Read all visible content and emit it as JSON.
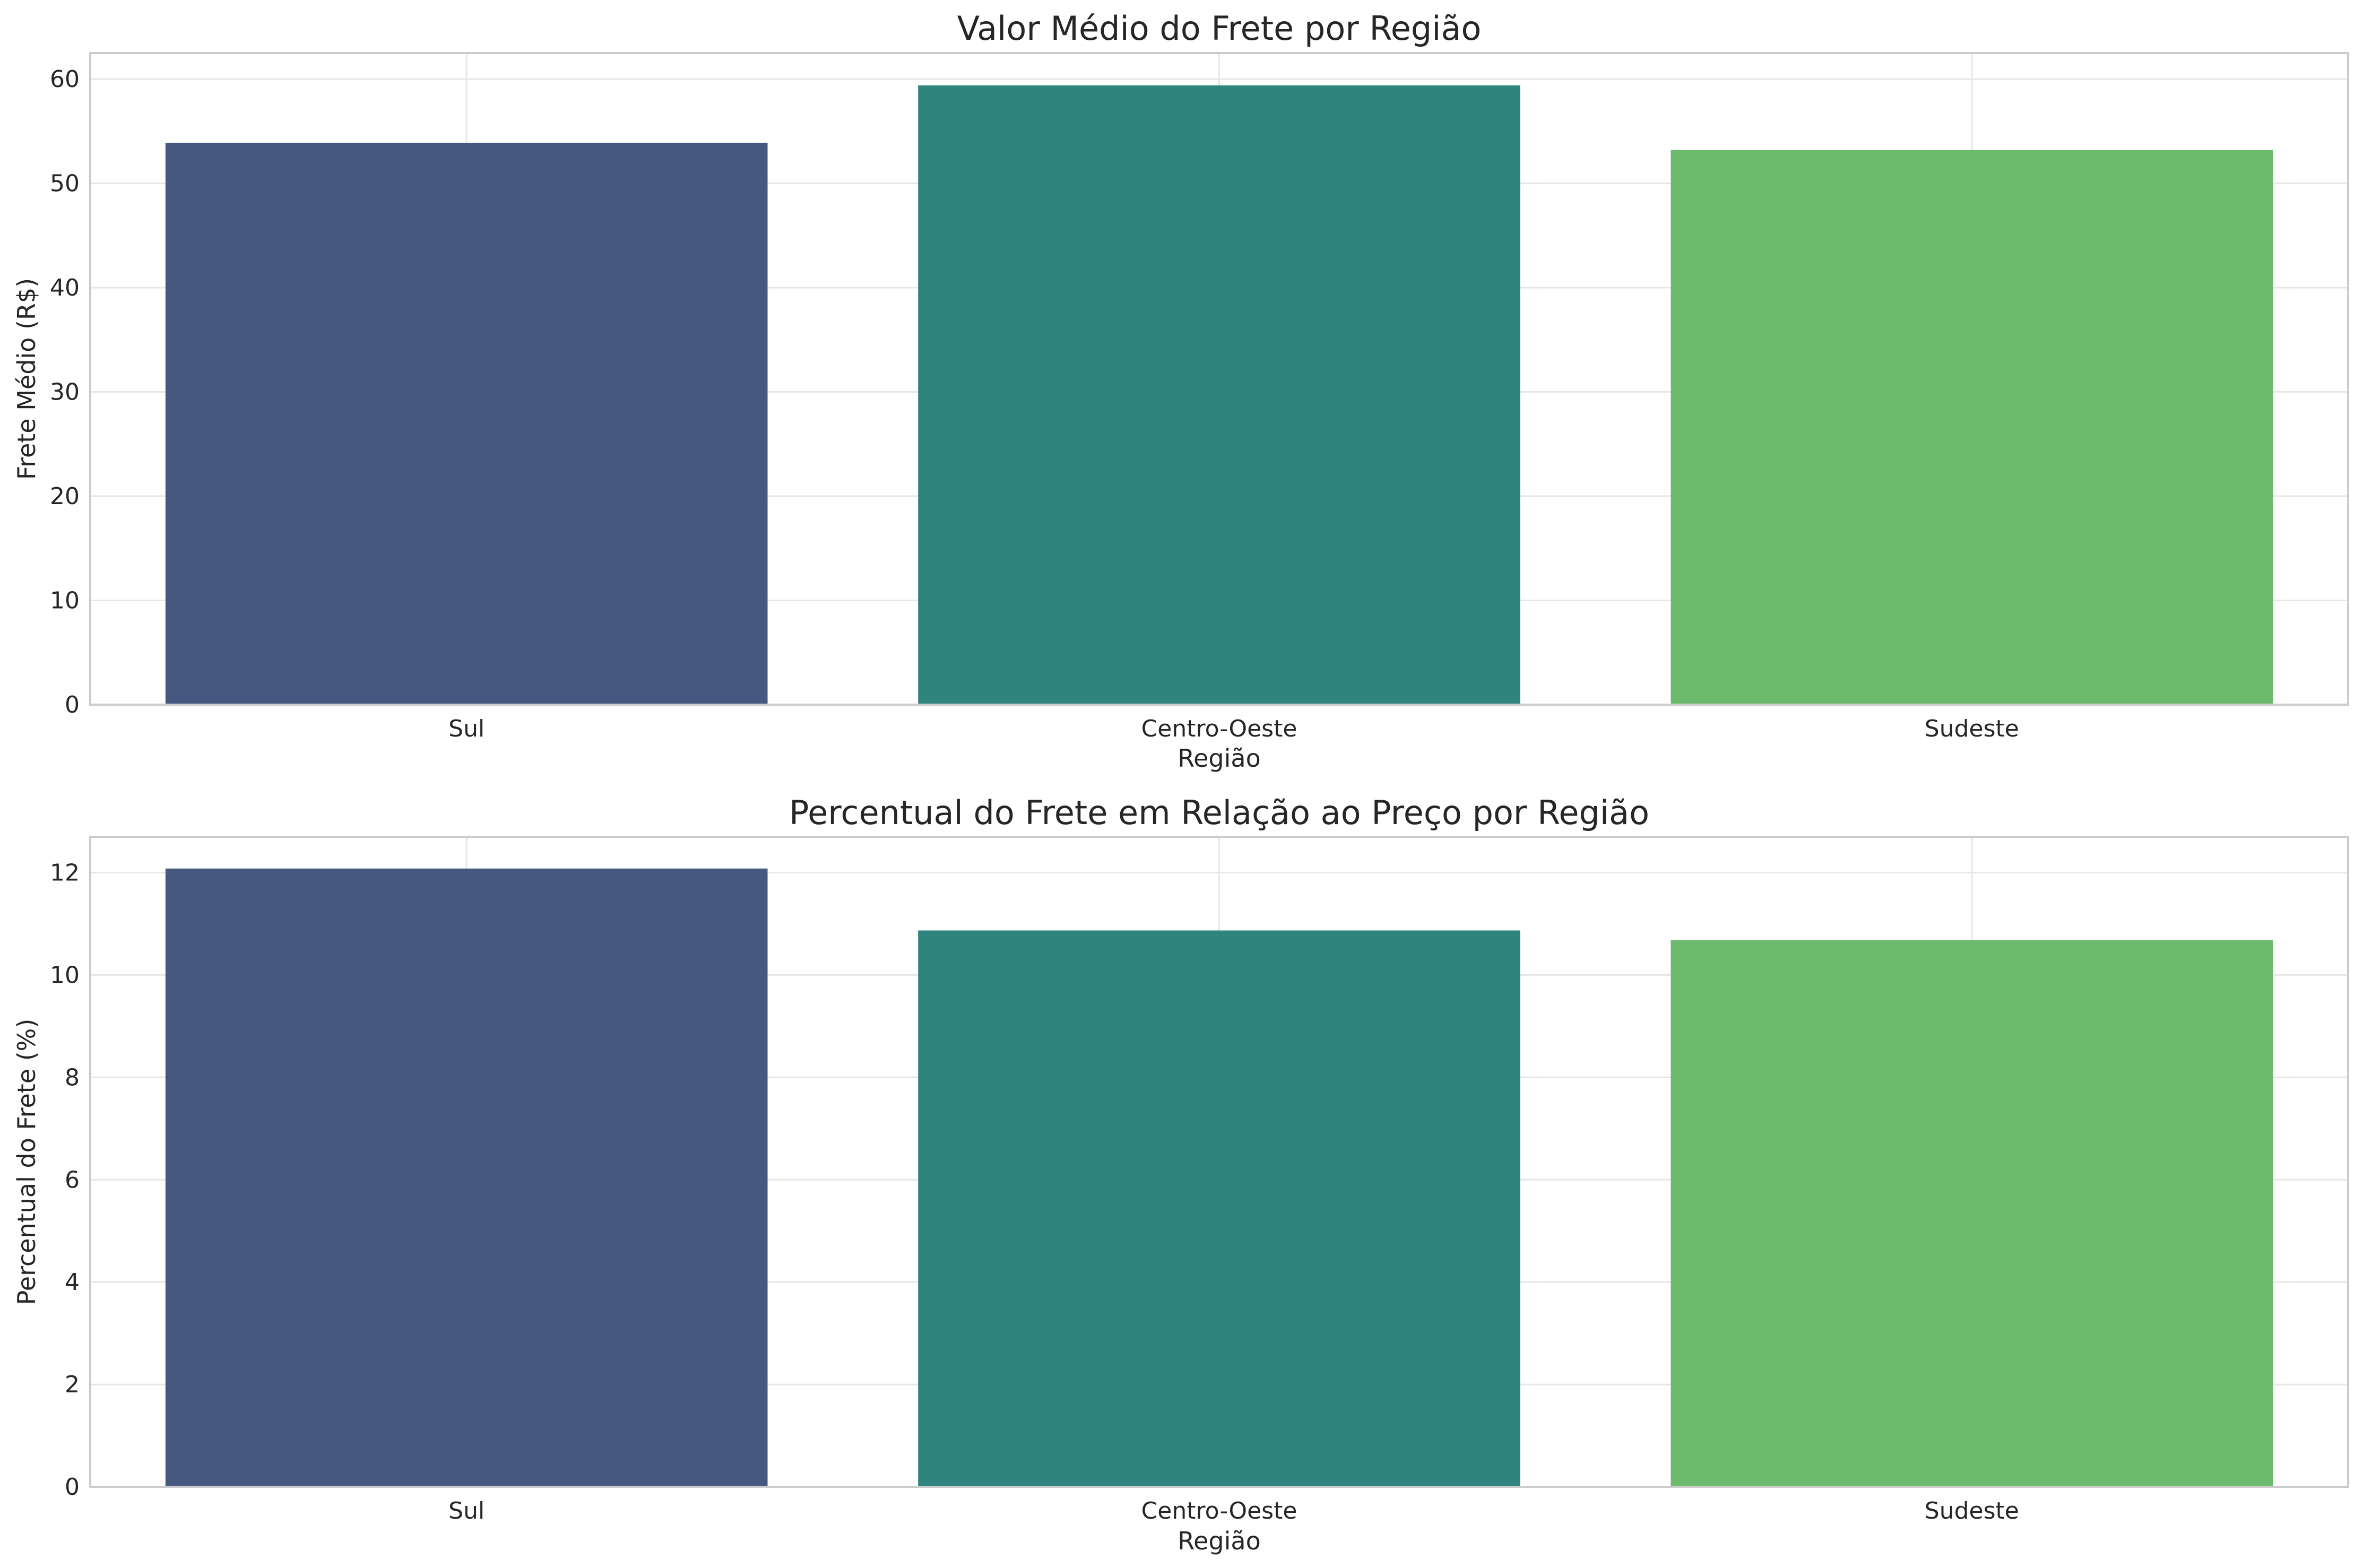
{
  "colors": {
    "Sul": "#46587f",
    "Centro-Oeste": "#2f847d",
    "Sudeste": "#6cbb6c"
  },
  "chart_data": [
    {
      "type": "bar",
      "title": "Valor Médio do Frete por Região",
      "xlabel": "Região",
      "ylabel": "Frete Médio (R$)",
      "categories": [
        "Sul",
        "Centro-Oeste",
        "Sudeste"
      ],
      "values": [
        53.9,
        59.4,
        53.2
      ],
      "ylim": [
        0,
        62.5
      ],
      "yticks": [
        0,
        10,
        20,
        30,
        40,
        50,
        60
      ],
      "grid": true,
      "legend": "none"
    },
    {
      "type": "bar",
      "title": "Percentual do Frete em Relação ao Preço por Região",
      "xlabel": "Região",
      "ylabel": "Percentual do Frete (%)",
      "categories": [
        "Sul",
        "Centro-Oeste",
        "Sudeste"
      ],
      "values": [
        12.08,
        10.87,
        10.68
      ],
      "ylim": [
        0,
        12.7
      ],
      "yticks": [
        0,
        2,
        4,
        6,
        8,
        10,
        12
      ],
      "grid": true,
      "legend": "none"
    }
  ]
}
